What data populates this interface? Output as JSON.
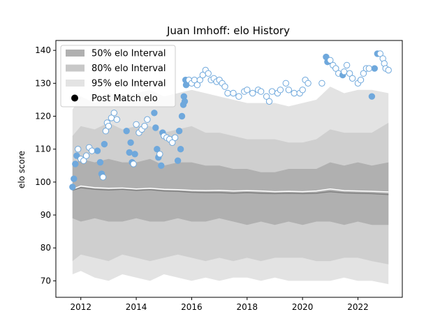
{
  "chart_data": {
    "type": "scatter",
    "title": "Juan Imhoff: elo History",
    "xlabel": "",
    "ylabel": "elo score",
    "xlim": [
      2011.1,
      2023.6
    ],
    "ylim": [
      65,
      143
    ],
    "x_ticks": [
      2012,
      2014,
      2016,
      2018,
      2020,
      2022
    ],
    "x_tick_labels": [
      "2012",
      "2014",
      "2016",
      "2018",
      "2020",
      "2022"
    ],
    "y_ticks": [
      70,
      80,
      90,
      100,
      110,
      120,
      130,
      140
    ],
    "y_tick_labels": [
      "70",
      "80",
      "90",
      "100",
      "110",
      "120",
      "130",
      "140"
    ],
    "grid": false,
    "legend_position": "top-left",
    "legend": [
      {
        "label": "50% elo Interval",
        "color": "#b0b0b0",
        "kind": "patch"
      },
      {
        "label": "80% elo Interval",
        "color": "#c8c8c8",
        "kind": "patch"
      },
      {
        "label": "95% elo Interval",
        "color": "#e3e3e3",
        "kind": "patch"
      },
      {
        "label": "Post Match elo",
        "color": "#000000",
        "kind": "marker"
      }
    ],
    "colors": {
      "band_50": "#b0b0b0",
      "band_80": "#cfcfcf",
      "band_95": "#e3e3e3",
      "median_line": "#808080",
      "mean_line": "#ffffff",
      "point_fill": "#6fa8dc",
      "point_hollow_fill": "#ffffff",
      "point_hollow_edge": "#6fa8dc"
    },
    "bands": {
      "x": [
        2011.7,
        2012.0,
        2012.5,
        2013.0,
        2013.5,
        2014.0,
        2014.5,
        2015.0,
        2015.5,
        2016.0,
        2016.5,
        2017.0,
        2017.5,
        2018.0,
        2018.5,
        2019.0,
        2019.5,
        2020.0,
        2020.5,
        2021.0,
        2021.5,
        2022.0,
        2022.5,
        2023.1
      ],
      "p95_upper": [
        122,
        126,
        124,
        127,
        126,
        127,
        128,
        126,
        127,
        128,
        127,
        126,
        125,
        124,
        124,
        124,
        123,
        124,
        125,
        129,
        127,
        128,
        128,
        127
      ],
      "p80_upper": [
        114,
        117,
        116,
        118,
        116,
        117,
        117,
        115,
        116,
        117,
        115,
        115,
        114,
        113,
        113,
        113,
        112,
        112,
        113,
        116,
        115,
        115,
        115,
        118
      ],
      "p50_upper": [
        105,
        107,
        106,
        107,
        106,
        106,
        107,
        105,
        106,
        106,
        105,
        105,
        104,
        104,
        103,
        103,
        104,
        104,
        104,
        106,
        105,
        106,
        105,
        106
      ],
      "p50_lower": [
        89,
        88,
        89,
        88,
        88,
        89,
        88,
        88,
        89,
        88,
        88,
        89,
        88,
        87,
        88,
        87,
        88,
        87,
        88,
        88,
        87,
        88,
        87,
        87
      ],
      "p80_lower": [
        76,
        78,
        77,
        76,
        78,
        77,
        76,
        77,
        78,
        77,
        76,
        77,
        76,
        77,
        76,
        77,
        77,
        77,
        76,
        76,
        77,
        77,
        76,
        75
      ],
      "p95_lower": [
        72,
        73,
        71,
        70,
        72,
        71,
        70,
        72,
        71,
        70,
        71,
        70,
        71,
        71,
        70,
        71,
        70,
        70,
        70,
        70,
        71,
        70,
        70,
        69
      ],
      "median": [
        97.5,
        98.3,
        97.8,
        97.6,
        97.8,
        97.5,
        97.7,
        97.3,
        97.2,
        96.9,
        96.8,
        96.8,
        96.6,
        96.8,
        96.6,
        96.5,
        96.6,
        96.5,
        96.6,
        97.1,
        96.7,
        96.6,
        96.5,
        96.2
      ],
      "mean": [
        97.8,
        98.8,
        98.3,
        98.1,
        98.2,
        97.9,
        98.1,
        97.8,
        97.7,
        97.5,
        97.4,
        97.5,
        97.3,
        97.4,
        97.3,
        97.1,
        97.2,
        97.1,
        97.3,
        97.9,
        97.4,
        97.3,
        97.2,
        97.0
      ]
    },
    "points": [
      {
        "x": 2011.7,
        "y": 98.5,
        "filled": true
      },
      {
        "x": 2011.75,
        "y": 101,
        "filled": true
      },
      {
        "x": 2011.8,
        "y": 105.5,
        "filled": true
      },
      {
        "x": 2011.85,
        "y": 108,
        "filled": true
      },
      {
        "x": 2011.9,
        "y": 110,
        "filled": false
      },
      {
        "x": 2012.0,
        "y": 107,
        "filled": false
      },
      {
        "x": 2012.1,
        "y": 106.5,
        "filled": false
      },
      {
        "x": 2012.2,
        "y": 108,
        "filled": false
      },
      {
        "x": 2012.3,
        "y": 110.5,
        "filled": false
      },
      {
        "x": 2012.4,
        "y": 109.5,
        "filled": false
      },
      {
        "x": 2012.6,
        "y": 109.5,
        "filled": true
      },
      {
        "x": 2012.7,
        "y": 106,
        "filled": true
      },
      {
        "x": 2012.75,
        "y": 102.5,
        "filled": true
      },
      {
        "x": 2012.8,
        "y": 101.5,
        "filled": false
      },
      {
        "x": 2012.85,
        "y": 111.5,
        "filled": true
      },
      {
        "x": 2012.9,
        "y": 115.5,
        "filled": false
      },
      {
        "x": 2012.95,
        "y": 118,
        "filled": false
      },
      {
        "x": 2013.0,
        "y": 117,
        "filled": false
      },
      {
        "x": 2013.1,
        "y": 119.5,
        "filled": false
      },
      {
        "x": 2013.2,
        "y": 121,
        "filled": false
      },
      {
        "x": 2013.3,
        "y": 119,
        "filled": false
      },
      {
        "x": 2013.65,
        "y": 115.5,
        "filled": true
      },
      {
        "x": 2013.75,
        "y": 109,
        "filled": true
      },
      {
        "x": 2013.8,
        "y": 112,
        "filled": true
      },
      {
        "x": 2013.85,
        "y": 106,
        "filled": true
      },
      {
        "x": 2013.9,
        "y": 105.5,
        "filled": false
      },
      {
        "x": 2013.95,
        "y": 108.5,
        "filled": true
      },
      {
        "x": 2014.0,
        "y": 117.5,
        "filled": false
      },
      {
        "x": 2014.1,
        "y": 115,
        "filled": false
      },
      {
        "x": 2014.2,
        "y": 116,
        "filled": false
      },
      {
        "x": 2014.3,
        "y": 117,
        "filled": false
      },
      {
        "x": 2014.4,
        "y": 119,
        "filled": false
      },
      {
        "x": 2014.65,
        "y": 121,
        "filled": true
      },
      {
        "x": 2014.7,
        "y": 116.5,
        "filled": true
      },
      {
        "x": 2014.75,
        "y": 110,
        "filled": true
      },
      {
        "x": 2014.8,
        "y": 107.5,
        "filled": true
      },
      {
        "x": 2014.85,
        "y": 108.5,
        "filled": false
      },
      {
        "x": 2014.9,
        "y": 105,
        "filled": true
      },
      {
        "x": 2014.95,
        "y": 115,
        "filled": true
      },
      {
        "x": 2015.0,
        "y": 114,
        "filled": false
      },
      {
        "x": 2015.1,
        "y": 113.5,
        "filled": false
      },
      {
        "x": 2015.2,
        "y": 113,
        "filled": false
      },
      {
        "x": 2015.3,
        "y": 112,
        "filled": false
      },
      {
        "x": 2015.4,
        "y": 113.5,
        "filled": false
      },
      {
        "x": 2015.5,
        "y": 106.5,
        "filled": true
      },
      {
        "x": 2015.55,
        "y": 115.5,
        "filled": true
      },
      {
        "x": 2015.6,
        "y": 110,
        "filled": true
      },
      {
        "x": 2015.65,
        "y": 120,
        "filled": true
      },
      {
        "x": 2015.7,
        "y": 123.5,
        "filled": true
      },
      {
        "x": 2015.72,
        "y": 126,
        "filled": true
      },
      {
        "x": 2015.75,
        "y": 124.5,
        "filled": true
      },
      {
        "x": 2015.78,
        "y": 131,
        "filled": true
      },
      {
        "x": 2015.8,
        "y": 129.5,
        "filled": true
      },
      {
        "x": 2015.9,
        "y": 131,
        "filled": false
      },
      {
        "x": 2016.0,
        "y": 130,
        "filled": false
      },
      {
        "x": 2016.1,
        "y": 131,
        "filled": false
      },
      {
        "x": 2016.2,
        "y": 129.5,
        "filled": false
      },
      {
        "x": 2016.3,
        "y": 131,
        "filled": false
      },
      {
        "x": 2016.4,
        "y": 132.5,
        "filled": false
      },
      {
        "x": 2016.5,
        "y": 134,
        "filled": false
      },
      {
        "x": 2016.6,
        "y": 133,
        "filled": false
      },
      {
        "x": 2016.7,
        "y": 131,
        "filled": false
      },
      {
        "x": 2016.8,
        "y": 131.5,
        "filled": false
      },
      {
        "x": 2016.9,
        "y": 130.5,
        "filled": false
      },
      {
        "x": 2017.0,
        "y": 131,
        "filled": false
      },
      {
        "x": 2017.1,
        "y": 130,
        "filled": false
      },
      {
        "x": 2017.2,
        "y": 129,
        "filled": false
      },
      {
        "x": 2017.3,
        "y": 127,
        "filled": false
      },
      {
        "x": 2017.5,
        "y": 127,
        "filled": false
      },
      {
        "x": 2017.7,
        "y": 126,
        "filled": false
      },
      {
        "x": 2017.9,
        "y": 127.5,
        "filled": false
      },
      {
        "x": 2018.0,
        "y": 128,
        "filled": false
      },
      {
        "x": 2018.2,
        "y": 127,
        "filled": false
      },
      {
        "x": 2018.4,
        "y": 128,
        "filled": false
      },
      {
        "x": 2018.5,
        "y": 127.5,
        "filled": false
      },
      {
        "x": 2018.7,
        "y": 126,
        "filled": false
      },
      {
        "x": 2018.8,
        "y": 124.5,
        "filled": false
      },
      {
        "x": 2018.9,
        "y": 127.5,
        "filled": false
      },
      {
        "x": 2019.1,
        "y": 127,
        "filled": false
      },
      {
        "x": 2019.2,
        "y": 128,
        "filled": false
      },
      {
        "x": 2019.4,
        "y": 130,
        "filled": false
      },
      {
        "x": 2019.5,
        "y": 128,
        "filled": false
      },
      {
        "x": 2019.7,
        "y": 127,
        "filled": false
      },
      {
        "x": 2019.9,
        "y": 127,
        "filled": false
      },
      {
        "x": 2020.0,
        "y": 128,
        "filled": false
      },
      {
        "x": 2020.1,
        "y": 131,
        "filled": false
      },
      {
        "x": 2020.2,
        "y": 130,
        "filled": false
      },
      {
        "x": 2020.7,
        "y": 130,
        "filled": false
      },
      {
        "x": 2020.85,
        "y": 138,
        "filled": true
      },
      {
        "x": 2020.9,
        "y": 136.5,
        "filled": true
      },
      {
        "x": 2021.0,
        "y": 137,
        "filled": false
      },
      {
        "x": 2021.1,
        "y": 135.5,
        "filled": false
      },
      {
        "x": 2021.2,
        "y": 134.5,
        "filled": false
      },
      {
        "x": 2021.3,
        "y": 133,
        "filled": false
      },
      {
        "x": 2021.45,
        "y": 132.5,
        "filled": true
      },
      {
        "x": 2021.5,
        "y": 133.5,
        "filled": false
      },
      {
        "x": 2021.6,
        "y": 135.5,
        "filled": false
      },
      {
        "x": 2021.7,
        "y": 133,
        "filled": false
      },
      {
        "x": 2021.8,
        "y": 131.5,
        "filled": false
      },
      {
        "x": 2022.0,
        "y": 130,
        "filled": false
      },
      {
        "x": 2022.1,
        "y": 131,
        "filled": false
      },
      {
        "x": 2022.2,
        "y": 133,
        "filled": false
      },
      {
        "x": 2022.3,
        "y": 134.5,
        "filled": false
      },
      {
        "x": 2022.4,
        "y": 134.5,
        "filled": false
      },
      {
        "x": 2022.5,
        "y": 126,
        "filled": true
      },
      {
        "x": 2022.6,
        "y": 134.5,
        "filled": true
      },
      {
        "x": 2022.7,
        "y": 139,
        "filled": true
      },
      {
        "x": 2022.8,
        "y": 139,
        "filled": false
      },
      {
        "x": 2022.9,
        "y": 137.5,
        "filled": false
      },
      {
        "x": 2022.95,
        "y": 136,
        "filled": false
      },
      {
        "x": 2023.0,
        "y": 134.5,
        "filled": false
      },
      {
        "x": 2023.1,
        "y": 134,
        "filled": false
      }
    ]
  }
}
